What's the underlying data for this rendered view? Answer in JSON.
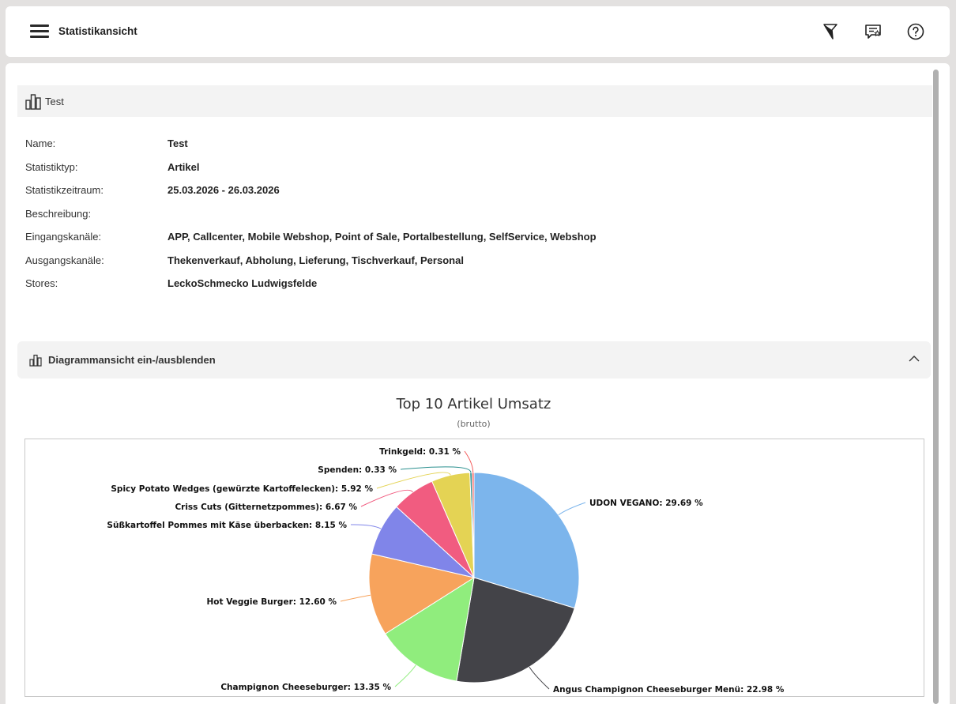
{
  "header": {
    "title": "Statistikansicht",
    "icons": [
      "menu-icon",
      "flag-icon",
      "feedback-icon",
      "help-icon"
    ]
  },
  "section": {
    "title": "Test",
    "icon": "bar-chart-icon"
  },
  "details": [
    {
      "label": "Name:",
      "value": "Test"
    },
    {
      "label": "Statistiktyp:",
      "value": "Artikel"
    },
    {
      "label": "Statistikzeitraum:",
      "value": "25.03.2026 - 26.03.2026"
    },
    {
      "label": "Beschreibung:",
      "value": ""
    },
    {
      "label": "Eingangskanäle:",
      "value": "APP, Callcenter, Mobile Webshop, Point of Sale, Portalbestellung, SelfService, Webshop"
    },
    {
      "label": "Ausgangskanäle:",
      "value": "Thekenverkauf, Abholung, Lieferung, Tischverkauf, Personal"
    },
    {
      "label": "Stores:",
      "value": "LeckoSchmecko Ludwigsfelde"
    }
  ],
  "diagram_toggle": {
    "label": "Diagrammansicht ein-/ausblenden",
    "expanded": true
  },
  "chart_data": {
    "type": "pie",
    "title": "Top 10 Artikel Umsatz",
    "subtitle": "(brutto)",
    "slices": [
      {
        "name": "UDON VEGANO",
        "value": 29.69,
        "label": "UDON VEGANO: 29.69 %",
        "color": "#7cb5ec"
      },
      {
        "name": "Angus Champignon Cheeseburger Menü",
        "value": 22.98,
        "label": "Angus Champignon Cheeseburger Menü: 22.98 %",
        "color": "#434348"
      },
      {
        "name": "Champignon Cheeseburger",
        "value": 13.35,
        "label": "Champignon Cheeseburger: 13.35 %",
        "color": "#90ed7d"
      },
      {
        "name": "Hot Veggie Burger",
        "value": 12.6,
        "label": "Hot Veggie Burger: 12.60 %",
        "color": "#f7a35c"
      },
      {
        "name": "Süßkartoffel Pommes mit Käse überbacken",
        "value": 8.15,
        "label": "Süßkartoffel Pommes mit Käse überbacken: 8.15 %",
        "color": "#8085e9"
      },
      {
        "name": "Criss Cuts (Gitternetzpommes)",
        "value": 6.67,
        "label": "Criss Cuts (Gitternetzpommes): 6.67 %",
        "color": "#f15c80"
      },
      {
        "name": "Spicy Potato Wedges (gewürzte Kartoffelecken)",
        "value": 5.92,
        "label": "Spicy Potato Wedges (gewürzte Kartoffelecken): 5.92 %",
        "color": "#e4d354"
      },
      {
        "name": "Spenden",
        "value": 0.33,
        "label": "Spenden: 0.33 %",
        "color": "#2b908f"
      },
      {
        "name": "Trinkgeld",
        "value": 0.31,
        "label": "Trinkgeld: 0.31 %",
        "color": "#f45b5b"
      }
    ]
  }
}
